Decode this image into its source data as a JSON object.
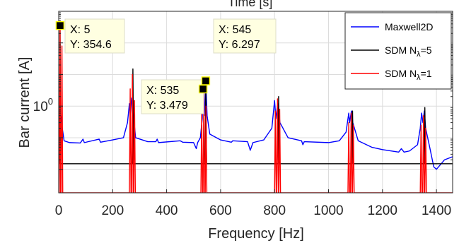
{
  "figure": {
    "top_title_fragment": "Time [s]"
  },
  "chart_data": {
    "type": "line",
    "xlabel": "Frequency [Hz]",
    "ylabel": "Bar current [A]",
    "y_scale": "log",
    "xlim": [
      0,
      1460
    ],
    "ylim": [
      0.0018,
      1000
    ],
    "x_ticks": [
      0,
      200,
      400,
      600,
      800,
      1000,
      1200,
      1400
    ],
    "y_ticks": [
      {
        "value": 1,
        "label": "10",
        "exponent": "0"
      }
    ],
    "grid": true,
    "legend": {
      "placement": "top-right",
      "entries": [
        {
          "series": 0,
          "text": "Maxwell2D"
        },
        {
          "series": 1,
          "text": "SDM N",
          "subscript": "λ",
          "suffix": "=5"
        },
        {
          "series": 2,
          "text": "SDM N",
          "subscript": "λ",
          "suffix": "=1"
        }
      ]
    },
    "series": [
      {
        "name": "Maxwell2D",
        "color": "#0000ff",
        "points": [
          [
            0,
            0.2
          ],
          [
            5,
            0.6
          ],
          [
            20,
            0.08
          ],
          [
            40,
            0.07
          ],
          [
            80,
            0.068
          ],
          [
            90,
            0.09
          ],
          [
            95,
            0.07
          ],
          [
            150,
            0.09
          ],
          [
            155,
            0.072
          ],
          [
            200,
            0.085
          ],
          [
            240,
            0.1
          ],
          [
            255,
            0.3
          ],
          [
            262,
            1.2
          ],
          [
            265,
            0.5
          ],
          [
            270,
            1.8
          ],
          [
            275,
            0.8
          ],
          [
            285,
            0.1
          ],
          [
            330,
            0.075
          ],
          [
            360,
            0.075
          ],
          [
            365,
            0.09
          ],
          [
            370,
            0.07
          ],
          [
            450,
            0.08
          ],
          [
            460,
            0.072
          ],
          [
            500,
            0.07
          ],
          [
            510,
            0.045
          ],
          [
            515,
            0.07
          ],
          [
            525,
            0.1
          ],
          [
            532,
            0.4
          ],
          [
            535,
            3.479
          ],
          [
            540,
            0.5
          ],
          [
            545,
            6.297
          ],
          [
            550,
            0.5
          ],
          [
            560,
            0.13
          ],
          [
            600,
            0.085
          ],
          [
            640,
            0.072
          ],
          [
            645,
            0.08
          ],
          [
            700,
            0.075
          ],
          [
            710,
            0.04
          ],
          [
            720,
            0.07
          ],
          [
            760,
            0.085
          ],
          [
            790,
            0.2
          ],
          [
            800,
            1.5
          ],
          [
            805,
            0.4
          ],
          [
            812,
            1.2
          ],
          [
            820,
            0.3
          ],
          [
            850,
            0.1
          ],
          [
            900,
            0.08
          ],
          [
            905,
            0.06
          ],
          [
            910,
            0.075
          ],
          [
            1000,
            0.07
          ],
          [
            1040,
            0.08
          ],
          [
            1065,
            0.15
          ],
          [
            1075,
            0.6
          ],
          [
            1078,
            0.3
          ],
          [
            1085,
            0.7
          ],
          [
            1090,
            0.3
          ],
          [
            1110,
            0.08
          ],
          [
            1160,
            0.05
          ],
          [
            1200,
            0.042
          ],
          [
            1260,
            0.035
          ],
          [
            1270,
            0.045
          ],
          [
            1280,
            0.035
          ],
          [
            1300,
            0.038
          ],
          [
            1330,
            0.06
          ],
          [
            1340,
            0.2
          ],
          [
            1345,
            0.6
          ],
          [
            1350,
            0.3
          ],
          [
            1355,
            0.7
          ],
          [
            1360,
            0.2
          ],
          [
            1375,
            0.05
          ],
          [
            1390,
            0.012
          ],
          [
            1400,
            0.01
          ],
          [
            1430,
            0.02
          ],
          [
            1460,
            0.025
          ]
        ]
      },
      {
        "name": "SDM Nλ=5",
        "color": "#000000",
        "points": [
          [
            0,
            0.015
          ],
          [
            3,
            0.015
          ],
          [
            5,
            300
          ],
          [
            7,
            0.015
          ],
          [
            270,
            0.015
          ],
          [
            273,
            0.015
          ],
          [
            275,
            15
          ],
          [
            278,
            0.015
          ],
          [
            540,
            0.015
          ],
          [
            543,
            0.015
          ],
          [
            545,
            3.0
          ],
          [
            548,
            0.015
          ],
          [
            810,
            0.015
          ],
          [
            813,
            0.015
          ],
          [
            815,
            2.0
          ],
          [
            818,
            0.015
          ],
          [
            1085,
            0.015
          ],
          [
            1087,
            0.015
          ],
          [
            1089,
            0.7
          ],
          [
            1092,
            0.015
          ],
          [
            1352,
            0.015
          ],
          [
            1355,
            0.015
          ],
          [
            1357,
            0.9
          ],
          [
            1360,
            0.015
          ],
          [
            1460,
            0.015
          ]
        ]
      },
      {
        "name": "SDM Nλ=1",
        "color": "#ff0000",
        "points": [
          [
            0,
            0.0018
          ],
          [
            2,
            0.0018
          ],
          [
            5,
            354.6
          ],
          [
            7,
            0.0018
          ],
          [
            9,
            0.0018
          ],
          [
            12,
            80
          ],
          [
            15,
            0.0018
          ],
          [
            262,
            0.0018
          ],
          [
            265,
            3.5
          ],
          [
            268,
            0.0018
          ],
          [
            270,
            0.0018
          ],
          [
            273,
            10
          ],
          [
            276,
            0.0018
          ],
          [
            278,
            0.0018
          ],
          [
            281,
            1.5
          ],
          [
            284,
            0.0018
          ],
          [
            527,
            0.0018
          ],
          [
            530,
            0.6
          ],
          [
            533,
            0.0018
          ],
          [
            535,
            0.0018
          ],
          [
            538,
            2.5
          ],
          [
            541,
            0.0018
          ],
          [
            543,
            0.0018
          ],
          [
            546,
            1.0
          ],
          [
            549,
            0.0018
          ],
          [
            800,
            0.0018
          ],
          [
            803,
            0.7
          ],
          [
            806,
            0.0018
          ],
          [
            808,
            0.0018
          ],
          [
            811,
            1.7
          ],
          [
            814,
            0.0018
          ],
          [
            816,
            0.0018
          ],
          [
            819,
            0.8
          ],
          [
            822,
            0.0018
          ],
          [
            1072,
            0.0018
          ],
          [
            1075,
            0.3
          ],
          [
            1078,
            0.0018
          ],
          [
            1081,
            0.0018
          ],
          [
            1084,
            0.6
          ],
          [
            1087,
            0.0018
          ],
          [
            1089,
            0.0018
          ],
          [
            1092,
            0.25
          ],
          [
            1095,
            0.0018
          ],
          [
            1340,
            0.0018
          ],
          [
            1343,
            0.25
          ],
          [
            1346,
            0.0018
          ],
          [
            1349,
            0.0018
          ],
          [
            1352,
            0.5
          ],
          [
            1355,
            0.0018
          ],
          [
            1357,
            0.0018
          ],
          [
            1360,
            0.2
          ],
          [
            1363,
            0.0018
          ],
          [
            1460,
            0.0018
          ]
        ]
      }
    ],
    "datatips": [
      {
        "x": 5,
        "y": 354.6,
        "x_text": "X: 5",
        "y_text": "Y: 354.6"
      },
      {
        "x": 535,
        "y": 3.479,
        "x_text": "X: 535",
        "y_text": "Y: 3.479"
      },
      {
        "x": 545,
        "y": 6.297,
        "x_text": "X: 545",
        "y_text": "Y: 6.297"
      }
    ]
  }
}
